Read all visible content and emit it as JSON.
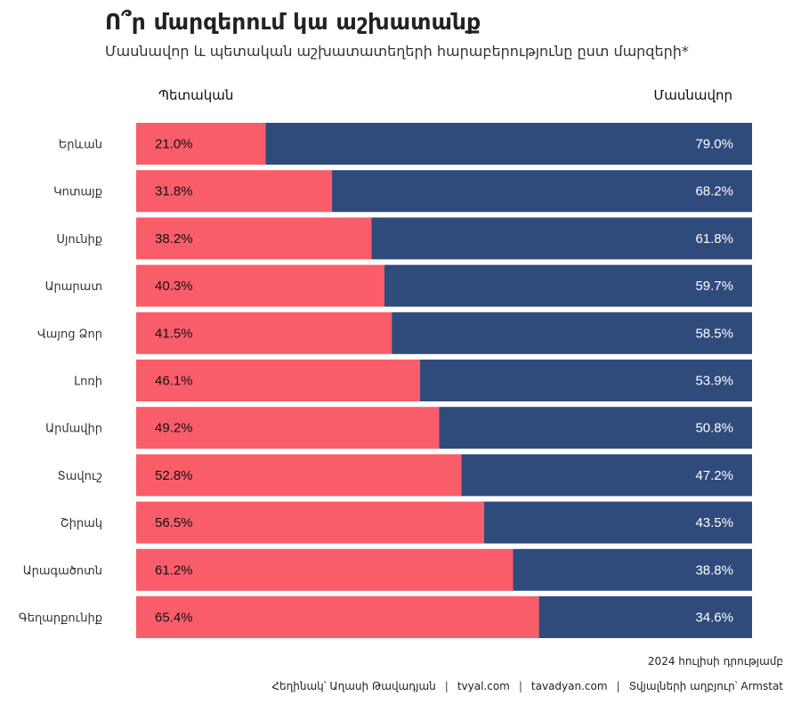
{
  "header": {
    "title": "Ո՞ր մարզերում կա աշխատանք",
    "subtitle": "Մասնավոր և պետական աշխատատեղերի հարաբերությունը ըստ մարզերի*"
  },
  "colors": {
    "public": "#F95D6A",
    "private": "#2F4B7C"
  },
  "chart_data": {
    "type": "bar",
    "orientation": "horizontal",
    "stacked": true,
    "percent_stacked": true,
    "title": "Ո՞ր մարզերում կա աշխատանք",
    "subtitle": "Մասնավոր և պետական աշխատատեղերի հարաբերությունը ըստ մարզերի*",
    "legend_position": "top",
    "xlim": [
      0,
      100
    ],
    "grid": false,
    "categories": [
      "Երևան",
      "Կոտայք",
      "Սյունիք",
      "Արարատ",
      "Վայոց Ձոր",
      "Լոռի",
      "Արմավիր",
      "Տավուշ",
      "Շիրակ",
      "Արագածոտն",
      "Գեղարքունիք"
    ],
    "series": [
      {
        "name": "Պետական",
        "color": "#F95D6A",
        "values": [
          21.0,
          31.8,
          38.2,
          40.3,
          41.5,
          46.1,
          49.2,
          52.8,
          56.5,
          61.2,
          65.4
        ],
        "labels": [
          "21.0%",
          "31.8%",
          "38.2%",
          "40.3%",
          "41.5%",
          "46.1%",
          "49.2%",
          "52.8%",
          "56.5%",
          "61.2%",
          "65.4%"
        ]
      },
      {
        "name": "Մասնավոր",
        "color": "#2F4B7C",
        "values": [
          79.0,
          68.2,
          61.8,
          59.7,
          58.5,
          53.9,
          50.8,
          47.2,
          43.5,
          38.8,
          34.6
        ],
        "labels": [
          "79.0%",
          "68.2%",
          "61.8%",
          "59.7%",
          "58.5%",
          "53.9%",
          "50.8%",
          "47.2%",
          "43.5%",
          "38.8%",
          "34.6%"
        ]
      }
    ]
  },
  "footer": {
    "note": "2024 հուլիսի դրությամբ",
    "author": "Հեղինակ՝ Աղասի Թավադյան",
    "site1": "tvyal.com",
    "site2": "tavadyan.com",
    "source": "Տվյալների աղբյուր՝ Armstat",
    "separator": "|"
  }
}
